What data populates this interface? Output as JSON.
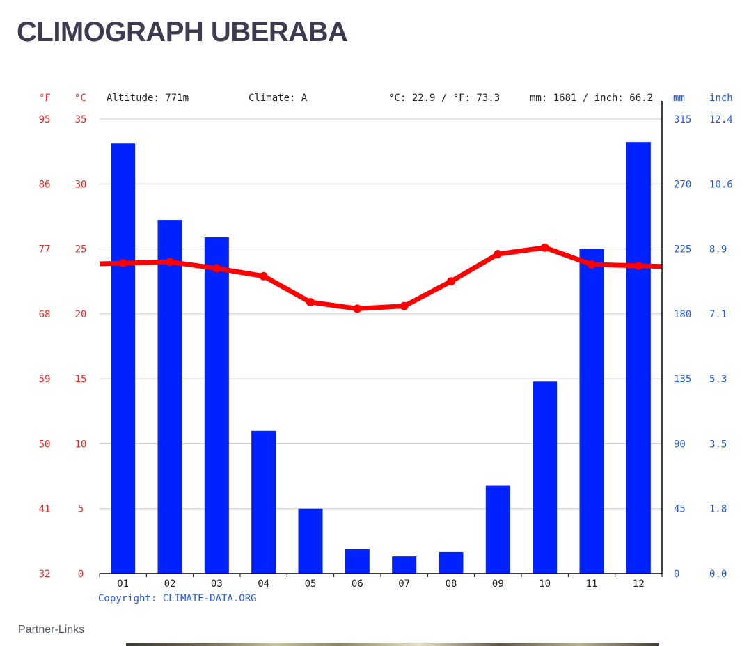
{
  "page": {
    "title": "CLIMOGRAPH UBERABA",
    "partner_links": "Partner-Links"
  },
  "chart_data": {
    "type": "bar",
    "header": {
      "f_unit": "°F",
      "c_unit": "°C",
      "altitude": "Altitude: 771m",
      "climate": "Climate: A",
      "temp_avg": "°C: 22.9 / °F: 73.3",
      "precip_total": "mm: 1681 / inch: 66.2",
      "mm_unit": "mm",
      "inch_unit": "inch"
    },
    "copyright": "Copyright: CLIMATE-DATA.ORG",
    "categories": [
      "01",
      "02",
      "03",
      "04",
      "05",
      "06",
      "07",
      "08",
      "09",
      "10",
      "11",
      "12"
    ],
    "series": [
      {
        "name": "mm",
        "type": "bar",
        "axis": "right",
        "color": "#0022ff",
        "values": [
          298,
          245,
          233,
          99,
          45,
          17,
          12,
          15,
          61,
          133,
          225,
          299
        ]
      },
      {
        "name": "°C",
        "type": "line",
        "axis": "left",
        "color": "#ff0000",
        "values": [
          23.9,
          24.0,
          23.5,
          22.9,
          20.9,
          20.4,
          20.6,
          22.5,
          24.6,
          25.1,
          23.8,
          23.7
        ]
      }
    ],
    "y_left_celsius": {
      "ylim": [
        0,
        35
      ],
      "ticks": [
        "0",
        "5",
        "10",
        "15",
        "20",
        "25",
        "30",
        "35"
      ]
    },
    "y_left_fahrenheit": {
      "ticks": [
        "32",
        "41",
        "50",
        "59",
        "68",
        "77",
        "86",
        "95"
      ]
    },
    "y_right_mm": {
      "ylim": [
        0,
        315
      ],
      "ticks": [
        "0",
        "45",
        "90",
        "135",
        "180",
        "225",
        "270",
        "315"
      ]
    },
    "y_right_inch": {
      "ticks": [
        "0.0",
        "1.8",
        "3.5",
        "5.3",
        "7.1",
        "8.9",
        "10.6",
        "12.4"
      ]
    },
    "grid": true,
    "colors": {
      "temperature_axis": "#ff2020",
      "precipitation_axis": "#2255ff",
      "grid": "#cccccc"
    }
  }
}
